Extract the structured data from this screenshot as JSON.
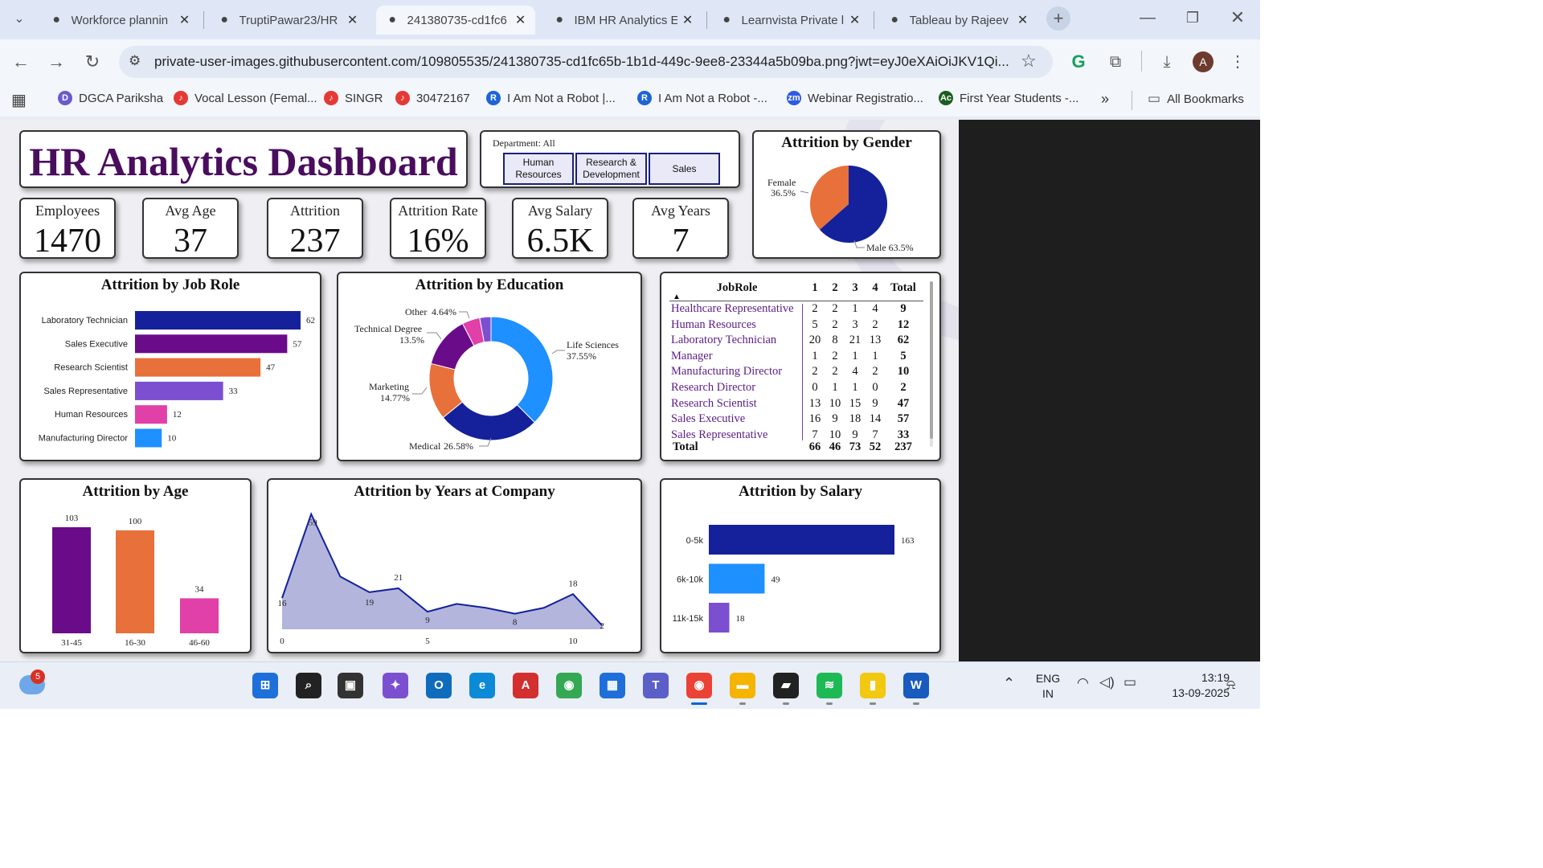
{
  "browser": {
    "tabs": [
      {
        "title": "Workforce plannin",
        "icon": "openai-icon"
      },
      {
        "title": "TruptiPawar23/HR",
        "icon": "github-icon"
      },
      {
        "title": "241380735-cd1fc6",
        "icon": "globe-icon"
      },
      {
        "title": "IBM HR Analytics E",
        "icon": "kaggle-icon"
      },
      {
        "title": "Learnvista Private l",
        "icon": "learnvista-icon"
      },
      {
        "title": "Tableau by Rajeev",
        "icon": "drive-icon"
      }
    ],
    "active_tab_index": 2,
    "url": "private-user-images.githubusercontent.com/109805535/241380735-cd1fc65b-1b1d-449c-9ee8-23344a5b09ba.png?jwt=eyJ0eXAiOiJKV1Qi...",
    "profile_initial": "A",
    "bookmarks": [
      {
        "label": "DGCA Pariksha",
        "icon_color": "#6a5acd",
        "glyph": "D"
      },
      {
        "label": "Vocal Lesson (Femal...",
        "icon_color": "#e53935",
        "glyph": "♪"
      },
      {
        "label": "SINGR",
        "icon_color": "#e53935",
        "glyph": "♪"
      },
      {
        "label": "30472167",
        "icon_color": "#e53935",
        "glyph": "♪"
      },
      {
        "label": "I Am Not a Robot |...",
        "icon_color": "#1e63d6",
        "glyph": "R"
      },
      {
        "label": "I Am Not a Robot -...",
        "icon_color": "#1e63d6",
        "glyph": "R"
      },
      {
        "label": "Webinar Registratio...",
        "icon_color": "#2d5be3",
        "glyph": "zm"
      },
      {
        "label": "First Year Students -...",
        "icon_color": "#1b5e20",
        "glyph": "Ac"
      }
    ],
    "more_bookmarks": "»",
    "all_bookmarks": "All Bookmarks"
  },
  "dashboard": {
    "title": "HR Analytics Dashboard",
    "slicer": {
      "label": "Department: All",
      "options": [
        "Human Resources",
        "Research & Development",
        "Sales"
      ]
    },
    "kpis": [
      {
        "label": "Employees",
        "value": "1470"
      },
      {
        "label": "Avg Age",
        "value": "37"
      },
      {
        "label": "Attrition",
        "value": "237"
      },
      {
        "label": "Attrition Rate",
        "value": "16%"
      },
      {
        "label": "Avg Salary",
        "value": "6.5K"
      },
      {
        "label": "Avg Years",
        "value": "7"
      }
    ],
    "matrix": {
      "headers": [
        "JobRole",
        "1",
        "2",
        "3",
        "4",
        "Total"
      ],
      "sort_icon": "▲",
      "rows": [
        {
          "role": "Healthcare Representative",
          "values": [
            "2",
            "2",
            "1",
            "4",
            "9"
          ]
        },
        {
          "role": "Human Resources",
          "values": [
            "5",
            "2",
            "3",
            "2",
            "12"
          ]
        },
        {
          "role": "Laboratory Technician",
          "values": [
            "20",
            "8",
            "21",
            "13",
            "62"
          ]
        },
        {
          "role": "Manager",
          "values": [
            "1",
            "2",
            "1",
            "1",
            "5"
          ]
        },
        {
          "role": "Manufacturing Director",
          "values": [
            "2",
            "2",
            "4",
            "2",
            "10"
          ]
        },
        {
          "role": "Research Director",
          "values": [
            "0",
            "1",
            "1",
            "0",
            "2"
          ]
        },
        {
          "role": "Research Scientist",
          "values": [
            "13",
            "10",
            "15",
            "9",
            "47"
          ]
        },
        {
          "role": "Sales Executive",
          "values": [
            "16",
            "9",
            "18",
            "14",
            "57"
          ]
        },
        {
          "role": "Sales Representative",
          "values": [
            "7",
            "10",
            "9",
            "7",
            "33"
          ]
        }
      ],
      "total": {
        "label": "Total",
        "values": [
          "66",
          "46",
          "73",
          "52",
          "237"
        ]
      }
    }
  },
  "chart_data": [
    {
      "type": "pie",
      "title": "Attrition by Gender",
      "slices": [
        {
          "name": "Female",
          "value": 36.5,
          "label": "36.5%",
          "color": "#e8703a"
        },
        {
          "name": "Male",
          "value": 63.5,
          "label": "Male 63.5%",
          "color": "#14219a"
        }
      ]
    },
    {
      "type": "bar",
      "orientation": "horizontal",
      "title": "Attrition by Job Role",
      "categories": [
        "Laboratory Technician",
        "Sales Executive",
        "Research Scientist",
        "Sales Representative",
        "Human Resources",
        "Manufacturing Director"
      ],
      "values": [
        62,
        57,
        47,
        33,
        12,
        10
      ],
      "colors": [
        "#14219a",
        "#6a0b8a",
        "#e8703a",
        "#7b4fd0",
        "#e040a8",
        "#1e90ff"
      ],
      "xlim": [
        0,
        62
      ]
    },
    {
      "type": "pie",
      "donut": true,
      "title": "Attrition by Education",
      "slices": [
        {
          "name": "Life Sciences",
          "value": 37.55,
          "label": "37.55%",
          "color": "#1e90ff"
        },
        {
          "name": "Medical",
          "value": 26.58,
          "label": "26.58%",
          "color": "#14219a"
        },
        {
          "name": "Marketing",
          "value": 14.77,
          "label": "14.77%",
          "color": "#e8703a"
        },
        {
          "name": "Technical Degree",
          "value": 13.5,
          "label": "13.5%",
          "color": "#6a0b8a"
        },
        {
          "name": "Other",
          "value": 4.64,
          "label": "4.64%",
          "color": "#e040a8"
        },
        {
          "name": "",
          "value": 2.96,
          "label": "",
          "color": "#7b4fd0"
        }
      ]
    },
    {
      "type": "bar",
      "title": "Attrition by Age",
      "categories": [
        "31-45",
        "16-30",
        "46-60"
      ],
      "values": [
        103,
        100,
        34
      ],
      "colors": [
        "#6a0b8a",
        "#e8703a",
        "#e040a8"
      ],
      "ylim": [
        0,
        103
      ]
    },
    {
      "type": "area",
      "title": "Attrition by Years at Company",
      "x": [
        0,
        1,
        2,
        3,
        4,
        5,
        6,
        7,
        8,
        9,
        10,
        11
      ],
      "values": [
        16,
        59,
        27,
        19,
        21,
        9,
        13,
        11,
        8,
        11,
        18,
        2
      ],
      "labeled_points": [
        [
          0,
          16
        ],
        [
          1,
          59
        ],
        [
          3,
          19
        ],
        [
          4,
          21
        ],
        [
          5,
          9
        ],
        [
          8,
          8
        ],
        [
          10,
          18
        ],
        [
          11,
          2
        ]
      ],
      "x_ticks": [
        0,
        5,
        10
      ],
      "fill": "#a6a8d6",
      "line": "#14219a"
    },
    {
      "type": "bar",
      "orientation": "horizontal",
      "title": "Attrition by Salary",
      "categories": [
        "0-5k",
        "6k-10k",
        "11k-15k"
      ],
      "values": [
        163,
        49,
        18
      ],
      "colors": [
        "#14219a",
        "#1e90ff",
        "#7b4fd0"
      ],
      "xlim": [
        0,
        163
      ]
    }
  ],
  "taskbar": {
    "weather_badge": "5",
    "apps": [
      {
        "name": "windows-start-icon",
        "glyph": "⊞",
        "color": "#1e6fd9"
      },
      {
        "name": "search-icon",
        "glyph": "⌕",
        "color": "#222"
      },
      {
        "name": "task-view-icon",
        "glyph": "▣",
        "color": "#333"
      },
      {
        "name": "copilot-icon",
        "glyph": "✦",
        "color": "#7b4fd0"
      },
      {
        "name": "outlook-icon",
        "glyph": "O",
        "color": "#0f6cbd"
      },
      {
        "name": "edge-icon",
        "glyph": "e",
        "color": "#0c8ad6"
      },
      {
        "name": "acrobat-icon",
        "glyph": "A",
        "color": "#d32f2f"
      },
      {
        "name": "chrome-icon",
        "glyph": "◉",
        "color": "#34a853"
      },
      {
        "name": "store-icon",
        "glyph": "▦",
        "color": "#1e6fd9"
      },
      {
        "name": "teams-icon",
        "glyph": "T",
        "color": "#5b5fc7"
      },
      {
        "name": "chrome-profile-icon",
        "glyph": "◉",
        "color": "#ea4335"
      },
      {
        "name": "file-explorer-icon",
        "glyph": "▬",
        "color": "#f4b400"
      },
      {
        "name": "sticky-notes-icon",
        "glyph": "▰",
        "color": "#222"
      },
      {
        "name": "spotify-icon",
        "glyph": "≋",
        "color": "#1db954"
      },
      {
        "name": "powerbi-icon",
        "glyph": "▮",
        "color": "#f2c811"
      },
      {
        "name": "word-icon",
        "glyph": "W",
        "color": "#185abd"
      }
    ],
    "language_line1": "ENG",
    "language_line2": "IN",
    "time": "13:19",
    "date": "13-09-2025"
  }
}
